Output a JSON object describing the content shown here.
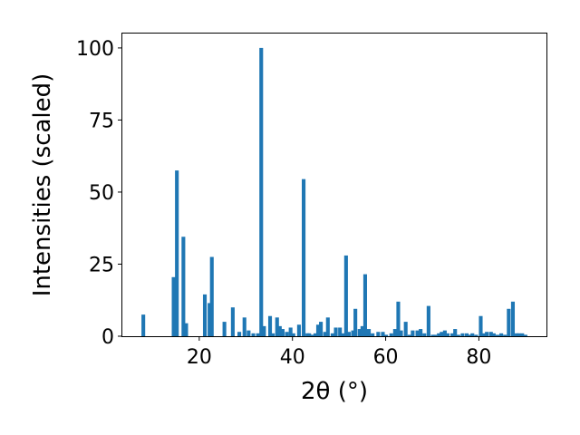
{
  "chart_data": {
    "type": "bar",
    "xlabel": "2θ (°)",
    "ylabel": "Intensities (scaled)",
    "xlim": [
      3.5,
      94.5
    ],
    "ylim": [
      0,
      105
    ],
    "xticks": [
      20,
      40,
      60,
      80
    ],
    "yticks": [
      0,
      25,
      50,
      75,
      100
    ],
    "bar_color": "#1f77b4",
    "bar_width_units": 0.8,
    "x": [
      8.0,
      14.5,
      15.2,
      16.6,
      17.2,
      21.2,
      22.2,
      22.7,
      25.4,
      27.2,
      28.6,
      29.7,
      30.6,
      31.6,
      32.6,
      33.3,
      33.9,
      35.2,
      35.8,
      36.7,
      37.3,
      37.9,
      38.8,
      39.6,
      40.2,
      41.4,
      42.4,
      43.2,
      43.6,
      44.3,
      44.9,
      45.5,
      46.1,
      47.0,
      47.6,
      48.6,
      49.3,
      50.2,
      50.8,
      51.5,
      52.1,
      53.0,
      53.5,
      54.4,
      55.0,
      55.6,
      56.4,
      57.2,
      58.4,
      59.4,
      60.1,
      61.2,
      62.0,
      62.7,
      63.3,
      64.3,
      65.1,
      65.8,
      66.8,
      67.5,
      68.3,
      69.2,
      70.1,
      70.6,
      71.4,
      72.0,
      72.7,
      73.3,
      74.3,
      74.9,
      75.6,
      76.5,
      77.4,
      78.0,
      78.6,
      79.4,
      80.4,
      81.0,
      81.7,
      82.6,
      83.2,
      84.0,
      84.8,
      85.6,
      86.4,
      87.3,
      88.1,
      88.6,
      89.3,
      90.0
    ],
    "values": [
      7.5,
      20.5,
      57.5,
      34.5,
      4.5,
      14.5,
      11.5,
      27.5,
      5.0,
      10.0,
      1.5,
      6.5,
      2.0,
      1.0,
      1.0,
      100.0,
      3.5,
      7.0,
      1.0,
      6.5,
      3.5,
      2.5,
      1.5,
      3.0,
      1.0,
      4.0,
      54.5,
      1.0,
      1.0,
      0.5,
      1.0,
      4.0,
      5.0,
      1.5,
      6.5,
      1.0,
      3.0,
      3.0,
      1.0,
      28.0,
      1.5,
      2.0,
      9.5,
      2.5,
      3.5,
      21.5,
      2.5,
      1.0,
      1.5,
      1.5,
      0.5,
      1.0,
      2.5,
      12.0,
      2.0,
      5.0,
      0.5,
      2.0,
      2.0,
      2.5,
      1.0,
      10.5,
      0.5,
      0.5,
      1.0,
      1.5,
      2.0,
      1.0,
      1.0,
      2.5,
      0.5,
      1.0,
      1.0,
      0.5,
      1.0,
      0.5,
      7.0,
      1.0,
      1.5,
      1.5,
      1.0,
      0.5,
      1.0,
      0.5,
      9.5,
      12.0,
      1.0,
      1.0,
      1.0,
      0.5
    ]
  }
}
